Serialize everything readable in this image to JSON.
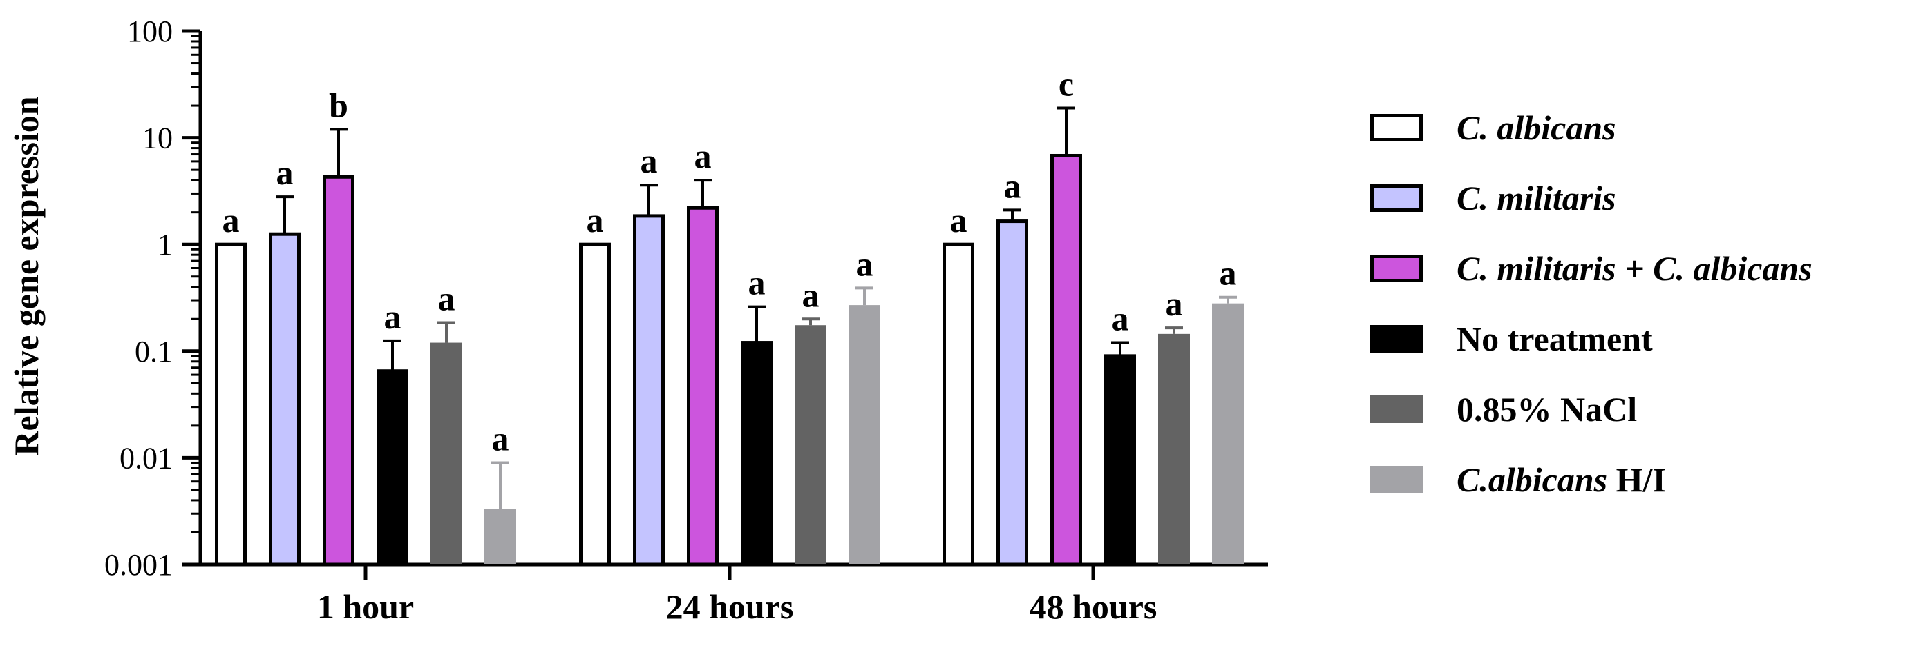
{
  "chart_data": {
    "type": "bar",
    "ylabel": "Relative gene expression",
    "yscale": "log",
    "ylim": [
      0.001,
      100
    ],
    "yticks": [
      {
        "value": 0.001,
        "label": "0.001"
      },
      {
        "value": 0.01,
        "label": "0.01"
      },
      {
        "value": 0.1,
        "label": "0.1"
      },
      {
        "value": 1,
        "label": "1"
      },
      {
        "value": 10,
        "label": "10"
      },
      {
        "value": 100,
        "label": "100"
      }
    ],
    "categories": [
      "1 hour",
      "24 hours",
      "48 hours"
    ],
    "legend_position": "right",
    "series": [
      {
        "name": "C. albicans",
        "legend_italic": "C. albicans",
        "legend_plain": "",
        "color": "#ffffff",
        "stroke": "#000000",
        "values": [
          1,
          1,
          1
        ],
        "errors": [
          null,
          null,
          null
        ],
        "labels": [
          "a",
          "a",
          "a"
        ]
      },
      {
        "name": "C. militaris",
        "legend_italic": "C. militaris",
        "legend_plain": "",
        "color": "#c4c4ff",
        "stroke": "#000000",
        "values": [
          1.25,
          1.85,
          1.65
        ],
        "errors": [
          2.8,
          3.6,
          2.1
        ],
        "labels": [
          "a",
          "a",
          "a"
        ]
      },
      {
        "name": "C. militaris + C. albicans",
        "legend_italic": "C. militaris + C. albicans",
        "legend_plain": "",
        "color": "#cc55dd",
        "stroke": "#000000",
        "values": [
          4.3,
          2.2,
          6.8
        ],
        "errors": [
          12,
          4.0,
          19
        ],
        "labels": [
          "b",
          "a",
          "c"
        ]
      },
      {
        "name": "No treatment",
        "legend_italic": "",
        "legend_plain": "No treatment",
        "color": "#000000",
        "stroke": "#000000",
        "values": [
          0.065,
          0.12,
          0.09
        ],
        "errors": [
          0.125,
          0.26,
          0.12
        ],
        "labels": [
          "a",
          "a",
          "a"
        ]
      },
      {
        "name": "0.85% NaCl",
        "legend_italic": "",
        "legend_plain": "0.85% NaCl",
        "color": "#636363",
        "stroke": "#636363",
        "values": [
          0.12,
          0.175,
          0.145
        ],
        "errors": [
          0.185,
          0.2,
          0.165
        ],
        "labels": [
          "a",
          "a",
          "a"
        ]
      },
      {
        "name": "C.albicans H/I",
        "legend_italic": "C.albicans",
        "legend_plain": " H/I",
        "color": "#a3a3a7",
        "stroke": "#a3a3a7",
        "values": [
          0.0033,
          0.27,
          0.28
        ],
        "errors": [
          0.009,
          0.39,
          0.32
        ],
        "labels": [
          "a",
          "a",
          "a"
        ]
      }
    ]
  }
}
